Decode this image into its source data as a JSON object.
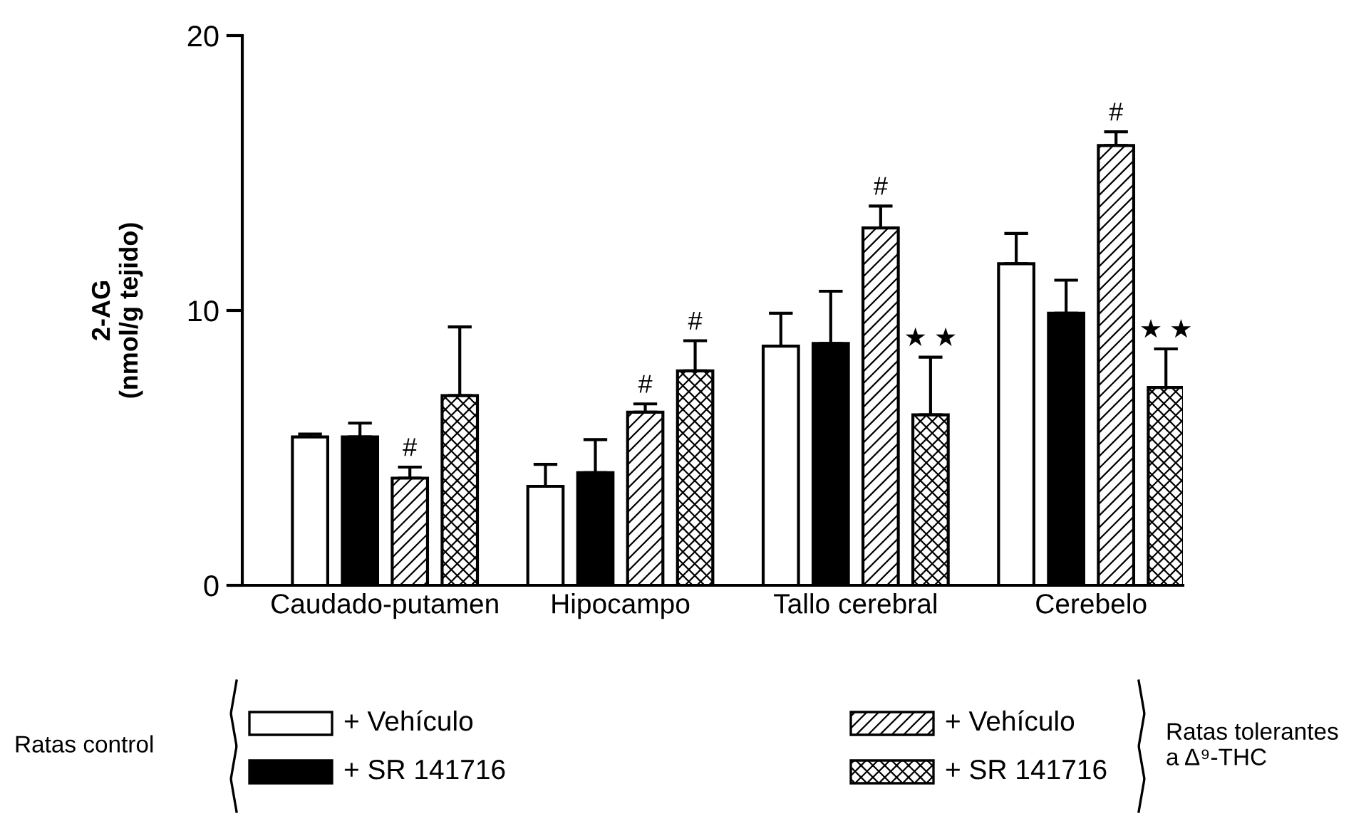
{
  "chart_data": {
    "type": "bar",
    "ylabel": "2-AG\n(nmol/g tejido)",
    "categories": [
      "Caudado-putamen",
      "Hipocampo",
      "Tallo cerebral",
      "Cerebelo"
    ],
    "series": [
      {
        "name": "+ Vehículo",
        "color": "#ffffff",
        "values": [
          5.4,
          3.6,
          8.7,
          11.7
        ],
        "errors": [
          [
            5.4,
            5.5
          ],
          [
            3.6,
            4.4
          ],
          [
            8.7,
            9.9
          ],
          [
            11.7,
            12.8
          ]
        ]
      },
      {
        "name": "+ SR 141716",
        "color": "#000000",
        "values": [
          5.4,
          4.1,
          8.8,
          9.9
        ],
        "errors": [
          [
            5.4,
            5.9
          ],
          [
            4.1,
            5.3
          ],
          [
            8.8,
            10.7
          ],
          [
            9.9,
            11.1
          ]
        ]
      },
      {
        "name": "+ Vehículo",
        "color": "#000000",
        "values": [
          3.9,
          6.3,
          13.0,
          16.0
        ],
        "errors": [
          [
            3.9,
            4.3
          ],
          [
            6.3,
            6.6
          ],
          [
            13.0,
            13.8
          ],
          [
            16.0,
            16.5
          ]
        ],
        "value_labels": [
          "#",
          "#",
          "#",
          "#"
        ]
      },
      {
        "name": "+ SR 141716",
        "color": "#000000",
        "values": [
          6.9,
          7.8,
          6.2,
          7.2
        ],
        "errors": [
          [
            6.9,
            9.4
          ],
          [
            7.8,
            8.9
          ],
          [
            6.2,
            8.3
          ],
          [
            7.2,
            8.6
          ]
        ],
        "value_labels": [
          null,
          "#",
          "★ ★",
          "★ ★"
        ]
      }
    ],
    "annotations": [
      "Ratas control",
      "Ratas tolerantes\na Δ⁹-THC"
    ],
    "ylim": [
      0,
      20
    ],
    "yticks": [
      0,
      10,
      20
    ],
    "grid": false,
    "legend": "bottom"
  }
}
